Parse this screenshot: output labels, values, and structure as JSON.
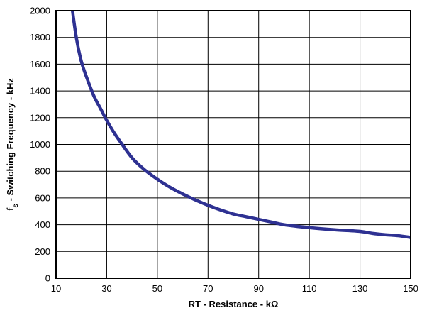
{
  "chart_data": {
    "type": "line",
    "xlabel": "RT - Resistance - kΩ",
    "ylabel_main": "f",
    "ylabel_sub": "s",
    "ylabel_rest": " - Switching Frequency - kHz",
    "xlim": [
      10,
      150
    ],
    "ylim": [
      0,
      2000
    ],
    "xticks": [
      10,
      30,
      50,
      70,
      90,
      110,
      130,
      150
    ],
    "yticks": [
      0,
      200,
      400,
      600,
      800,
      1000,
      1200,
      1400,
      1600,
      1800,
      2000
    ],
    "grid": true,
    "series_color": "#2e3192",
    "series": [
      {
        "x": [
          16.5,
          18,
          20,
          22.5,
          25,
          27.5,
          30,
          32.5,
          35,
          40,
          45,
          50,
          55,
          60,
          65,
          70,
          75,
          80,
          85,
          90,
          95,
          100,
          110,
          120,
          130,
          135,
          140,
          145,
          150
        ],
        "y": [
          2000,
          1800,
          1620,
          1480,
          1360,
          1270,
          1180,
          1100,
          1030,
          900,
          810,
          740,
          680,
          630,
          585,
          545,
          510,
          480,
          460,
          440,
          420,
          400,
          378,
          362,
          350,
          335,
          325,
          318,
          305
        ]
      }
    ]
  }
}
